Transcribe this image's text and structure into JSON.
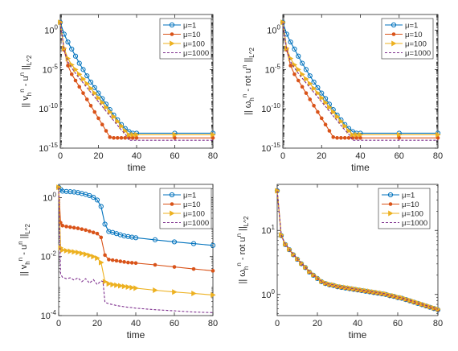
{
  "figure": {
    "background": "#ffffff",
    "series_styles": [
      {
        "color": "#0072BD",
        "marker": "circle",
        "dash": false
      },
      {
        "color": "#D95319",
        "marker": "dot",
        "dash": false
      },
      {
        "color": "#EDB120",
        "marker": "triangle-right",
        "dash": false
      },
      {
        "color": "#7E2F8E",
        "marker": "none",
        "dash": true
      }
    ]
  },
  "chart_data": [
    {
      "type": "line",
      "yscale": "log",
      "xlabel": "time",
      "ylabel": "|| v_h^n - u^n ||_{L^2}",
      "xlim": [
        0,
        80
      ],
      "ylim_exp": [
        -15,
        2
      ],
      "xticks": [
        0,
        20,
        40,
        60,
        80
      ],
      "yticks": [
        "10^0",
        "10^-5",
        "10^-10",
        "10^-15"
      ],
      "legend": "top-right",
      "series": [
        {
          "name": "μ=1",
          "x": [
            0,
            2,
            4,
            6,
            8,
            10,
            12,
            14,
            16,
            18,
            20,
            22,
            24,
            26,
            28,
            30,
            32,
            34,
            36,
            38,
            40,
            60,
            80
          ],
          "log10y": [
            1,
            -0.5,
            -1.5,
            -2.4,
            -3.3,
            -4.2,
            -5.0,
            -5.8,
            -6.6,
            -7.3,
            -8.0,
            -8.7,
            -9.4,
            -10.1,
            -10.8,
            -11.4,
            -12.0,
            -12.5,
            -12.9,
            -13.1,
            -13.1,
            -13.1,
            -13.1
          ]
        },
        {
          "name": "μ=10",
          "x": [
            0,
            2,
            4,
            6,
            8,
            10,
            12,
            14,
            16,
            18,
            20,
            22,
            24,
            26,
            28,
            30,
            32,
            34,
            36,
            38,
            40,
            60,
            80
          ],
          "log10y": [
            1,
            -2.5,
            -4.5,
            -5.6,
            -6.4,
            -7.2,
            -8.0,
            -8.8,
            -9.6,
            -10.4,
            -11.2,
            -12.0,
            -12.8,
            -13.6,
            -13.7,
            -13.7,
            -13.7,
            -13.7,
            -13.7,
            -13.7,
            -13.7,
            -13.7,
            -13.7
          ]
        },
        {
          "name": "μ=100",
          "x": [
            0,
            2,
            4,
            6,
            8,
            10,
            12,
            14,
            16,
            18,
            20,
            22,
            24,
            26,
            28,
            30,
            32,
            34,
            36,
            38,
            40,
            60,
            80
          ],
          "log10y": [
            1,
            -2.3,
            -3.6,
            -4.4,
            -5.0,
            -5.6,
            -6.2,
            -6.8,
            -7.4,
            -8.0,
            -8.6,
            -9.2,
            -9.8,
            -10.4,
            -11.0,
            -11.6,
            -12.2,
            -12.8,
            -13.3,
            -13.3,
            -13.3,
            -13.3,
            -13.3
          ]
        },
        {
          "name": "μ=1000",
          "x": [
            0,
            2,
            4,
            6,
            8,
            10,
            12,
            14,
            16,
            18,
            20,
            22,
            24,
            26,
            28,
            30,
            32,
            34,
            36,
            38,
            40,
            60,
            80
          ],
          "log10y": [
            1,
            -2.5,
            -4.0,
            -4.8,
            -5.5,
            -6.1,
            -6.7,
            -7.3,
            -7.9,
            -8.5,
            -9.1,
            -9.7,
            -10.3,
            -10.9,
            -11.5,
            -12.1,
            -12.7,
            -13.2,
            -14.0,
            -14.0,
            -14.0,
            -14.0,
            -14.0
          ]
        }
      ]
    },
    {
      "type": "line",
      "yscale": "log",
      "xlabel": "time",
      "ylabel": "|| ω_h^n - rot u^n ||_{L^2}",
      "xlim": [
        0,
        80
      ],
      "ylim_exp": [
        -15,
        2
      ],
      "xticks": [
        0,
        20,
        40,
        60,
        80
      ],
      "yticks": [
        "10^0",
        "10^-5",
        "10^-10",
        "10^-15"
      ],
      "legend": "top-right",
      "series": [
        {
          "name": "μ=1",
          "x": [
            0,
            2,
            4,
            6,
            8,
            10,
            12,
            14,
            16,
            18,
            20,
            22,
            24,
            26,
            28,
            30,
            32,
            34,
            36,
            38,
            40,
            60,
            80
          ],
          "log10y": [
            1,
            -0.5,
            -1.5,
            -2.4,
            -3.3,
            -4.2,
            -5.0,
            -5.8,
            -6.6,
            -7.3,
            -8.0,
            -8.7,
            -9.4,
            -10.1,
            -10.8,
            -11.4,
            -12.0,
            -12.5,
            -12.9,
            -13.1,
            -13.1,
            -13.1,
            -13.1
          ]
        },
        {
          "name": "μ=10",
          "x": [
            0,
            2,
            4,
            6,
            8,
            10,
            12,
            14,
            16,
            18,
            20,
            22,
            24,
            26,
            28,
            30,
            32,
            34,
            36,
            38,
            40,
            60,
            80
          ],
          "log10y": [
            1,
            -2.5,
            -4.5,
            -5.6,
            -6.4,
            -7.2,
            -8.0,
            -8.8,
            -9.6,
            -10.4,
            -11.2,
            -12.0,
            -12.8,
            -13.6,
            -13.7,
            -13.7,
            -13.7,
            -13.7,
            -13.7,
            -13.7,
            -13.7,
            -13.7,
            -13.7
          ]
        },
        {
          "name": "μ=100",
          "x": [
            0,
            2,
            4,
            6,
            8,
            10,
            12,
            14,
            16,
            18,
            20,
            22,
            24,
            26,
            28,
            30,
            32,
            34,
            36,
            38,
            40,
            60,
            80
          ],
          "log10y": [
            1,
            -2.3,
            -3.6,
            -4.4,
            -5.0,
            -5.6,
            -6.2,
            -6.8,
            -7.4,
            -8.0,
            -8.6,
            -9.2,
            -9.8,
            -10.4,
            -11.0,
            -11.6,
            -12.2,
            -12.8,
            -13.3,
            -13.3,
            -13.3,
            -13.3,
            -13.3
          ]
        },
        {
          "name": "μ=1000",
          "x": [
            0,
            2,
            4,
            6,
            8,
            10,
            12,
            14,
            16,
            18,
            20,
            22,
            24,
            26,
            28,
            30,
            32,
            34,
            36,
            38,
            40,
            60,
            80
          ],
          "log10y": [
            1,
            -2.5,
            -4.0,
            -4.8,
            -5.5,
            -6.1,
            -6.7,
            -7.3,
            -7.9,
            -8.5,
            -9.1,
            -9.7,
            -10.3,
            -10.9,
            -11.5,
            -12.1,
            -12.7,
            -13.2,
            -14.0,
            -14.0,
            -14.0,
            -14.0,
            -14.0
          ]
        }
      ]
    },
    {
      "type": "line",
      "yscale": "log",
      "xlabel": "time",
      "ylabel": "|| v_h^n - u^n ||_{L^2}",
      "xlim": [
        0,
        80
      ],
      "ylim_exp": [
        -4,
        0.45
      ],
      "xticks": [
        0,
        20,
        40,
        60,
        80
      ],
      "yticks": [
        "10^0",
        "10^-2",
        "10^-4"
      ],
      "legend": "top-right",
      "series": [
        {
          "name": "μ=1",
          "x": [
            0,
            1,
            2,
            4,
            6,
            8,
            10,
            12,
            14,
            16,
            18,
            20,
            22,
            24,
            26,
            28,
            30,
            32,
            34,
            36,
            38,
            40,
            50,
            60,
            70,
            80
          ],
          "log10y": [
            0.35,
            0.28,
            0.22,
            0.21,
            0.2,
            0.19,
            0.17,
            0.14,
            0.11,
            0.07,
            0.01,
            -0.08,
            -0.3,
            -0.9,
            -1.15,
            -1.18,
            -1.22,
            -1.26,
            -1.3,
            -1.32,
            -1.34,
            -1.36,
            -1.43,
            -1.5,
            -1.56,
            -1.62
          ]
        },
        {
          "name": "μ=10",
          "x": [
            0,
            1,
            2,
            4,
            6,
            8,
            10,
            12,
            14,
            16,
            18,
            20,
            22,
            24,
            26,
            28,
            30,
            32,
            34,
            36,
            38,
            40,
            50,
            60,
            70,
            80
          ],
          "log10y": [
            0.35,
            -0.85,
            -0.95,
            -0.98,
            -1.0,
            -1.02,
            -1.04,
            -1.07,
            -1.1,
            -1.14,
            -1.18,
            -1.22,
            -1.35,
            -1.95,
            -2.1,
            -2.12,
            -2.14,
            -2.16,
            -2.18,
            -2.2,
            -2.21,
            -2.22,
            -2.28,
            -2.35,
            -2.42,
            -2.48
          ]
        },
        {
          "name": "μ=100",
          "x": [
            0,
            1,
            2,
            4,
            6,
            8,
            10,
            12,
            14,
            16,
            18,
            20,
            22,
            24,
            26,
            28,
            30,
            32,
            34,
            36,
            38,
            40,
            50,
            60,
            70,
            80
          ],
          "log10y": [
            0.35,
            -1.7,
            -1.78,
            -1.8,
            -1.82,
            -1.84,
            -1.86,
            -1.89,
            -1.92,
            -1.96,
            -2.0,
            -2.05,
            -2.2,
            -2.85,
            -2.92,
            -2.95,
            -2.97,
            -2.99,
            -3.01,
            -3.03,
            -3.05,
            -3.07,
            -3.14,
            -3.2,
            -3.25,
            -3.3
          ]
        },
        {
          "name": "μ=1000",
          "x": [
            0,
            1,
            2,
            4,
            6,
            8,
            10,
            12,
            14,
            16,
            18,
            20,
            22,
            23,
            24,
            26,
            28,
            30,
            32,
            34,
            36,
            38,
            40,
            50,
            60,
            70,
            80
          ],
          "log10y": [
            0.35,
            -2.6,
            -2.7,
            -2.75,
            -2.72,
            -2.8,
            -2.72,
            -2.85,
            -2.75,
            -2.9,
            -2.78,
            -2.95,
            -2.82,
            -2.85,
            -3.55,
            -3.6,
            -3.63,
            -3.66,
            -3.68,
            -3.7,
            -3.72,
            -3.73,
            -3.75,
            -3.8,
            -3.84,
            -3.88,
            -3.9
          ]
        }
      ]
    },
    {
      "type": "line",
      "yscale": "log",
      "xlabel": "time",
      "ylabel": "|| ω_h^n - rot u^n ||_{L^2}",
      "xlim": [
        0,
        80
      ],
      "ylim_exp": [
        -0.33,
        1.72
      ],
      "xticks": [
        0,
        20,
        40,
        60,
        80
      ],
      "yticks": [
        "10^1",
        "10^0"
      ],
      "legend": "top-right",
      "series": [
        {
          "name": "μ=1",
          "x": [
            0,
            2,
            4,
            6,
            8,
            10,
            12,
            14,
            16,
            18,
            20,
            22,
            24,
            26,
            28,
            30,
            32,
            34,
            36,
            38,
            40,
            42,
            44,
            46,
            48,
            50,
            52,
            54,
            56,
            58,
            60,
            62,
            64,
            66,
            68,
            70,
            72,
            74,
            76,
            78,
            80
          ],
          "log10y": [
            1.62,
            0.92,
            0.78,
            0.7,
            0.62,
            0.55,
            0.48,
            0.42,
            0.35,
            0.3,
            0.25,
            0.2,
            0.17,
            0.15,
            0.14,
            0.12,
            0.11,
            0.1,
            0.09,
            0.08,
            0.07,
            0.06,
            0.05,
            0.04,
            0.03,
            0.02,
            0.01,
            0.0,
            -0.02,
            -0.03,
            -0.05,
            -0.06,
            -0.08,
            -0.1,
            -0.12,
            -0.14,
            -0.16,
            -0.18,
            -0.2,
            -0.22,
            -0.24
          ]
        },
        {
          "name": "μ=10",
          "x": [
            0,
            2,
            4,
            6,
            8,
            10,
            12,
            14,
            16,
            18,
            20,
            22,
            24,
            26,
            28,
            30,
            32,
            34,
            36,
            38,
            40,
            42,
            44,
            46,
            48,
            50,
            52,
            54,
            56,
            58,
            60,
            62,
            64,
            66,
            68,
            70,
            72,
            74,
            76,
            78,
            80
          ],
          "log10y": [
            1.62,
            0.92,
            0.78,
            0.7,
            0.62,
            0.55,
            0.48,
            0.42,
            0.35,
            0.3,
            0.25,
            0.2,
            0.17,
            0.15,
            0.14,
            0.12,
            0.11,
            0.1,
            0.09,
            0.08,
            0.07,
            0.06,
            0.05,
            0.04,
            0.03,
            0.02,
            0.01,
            0.0,
            -0.02,
            -0.03,
            -0.05,
            -0.06,
            -0.08,
            -0.1,
            -0.12,
            -0.14,
            -0.16,
            -0.18,
            -0.2,
            -0.22,
            -0.24
          ]
        },
        {
          "name": "μ=100",
          "x": [
            0,
            2,
            4,
            6,
            8,
            10,
            12,
            14,
            16,
            18,
            20,
            22,
            24,
            26,
            28,
            30,
            32,
            34,
            36,
            38,
            40,
            42,
            44,
            46,
            48,
            50,
            52,
            54,
            56,
            58,
            60,
            62,
            64,
            66,
            68,
            70,
            72,
            74,
            76,
            78,
            80
          ],
          "log10y": [
            1.62,
            0.93,
            0.79,
            0.71,
            0.63,
            0.56,
            0.49,
            0.43,
            0.36,
            0.31,
            0.26,
            0.21,
            0.18,
            0.16,
            0.15,
            0.13,
            0.12,
            0.11,
            0.1,
            0.09,
            0.08,
            0.07,
            0.06,
            0.05,
            0.04,
            0.03,
            0.02,
            0.01,
            -0.01,
            -0.02,
            -0.04,
            -0.05,
            -0.07,
            -0.09,
            -0.11,
            -0.13,
            -0.15,
            -0.17,
            -0.19,
            -0.21,
            -0.23
          ]
        },
        {
          "name": "μ=1000",
          "x": [
            0,
            2,
            4,
            6,
            8,
            10,
            12,
            14,
            16,
            18,
            20,
            22,
            24,
            26,
            28,
            30,
            32,
            34,
            36,
            38,
            40,
            42,
            44,
            46,
            48,
            50,
            52,
            54,
            56,
            58,
            60,
            62,
            64,
            66,
            68,
            70,
            72,
            74,
            76,
            78,
            80
          ],
          "log10y": [
            1.62,
            0.93,
            0.79,
            0.71,
            0.63,
            0.56,
            0.49,
            0.43,
            0.36,
            0.31,
            0.26,
            0.21,
            0.18,
            0.16,
            0.15,
            0.13,
            0.12,
            0.11,
            0.1,
            0.09,
            0.08,
            0.07,
            0.06,
            0.05,
            0.04,
            0.03,
            0.02,
            0.01,
            -0.01,
            -0.02,
            -0.04,
            -0.05,
            -0.07,
            -0.09,
            -0.11,
            -0.13,
            -0.15,
            -0.17,
            -0.19,
            -0.21,
            -0.23
          ]
        }
      ]
    }
  ]
}
